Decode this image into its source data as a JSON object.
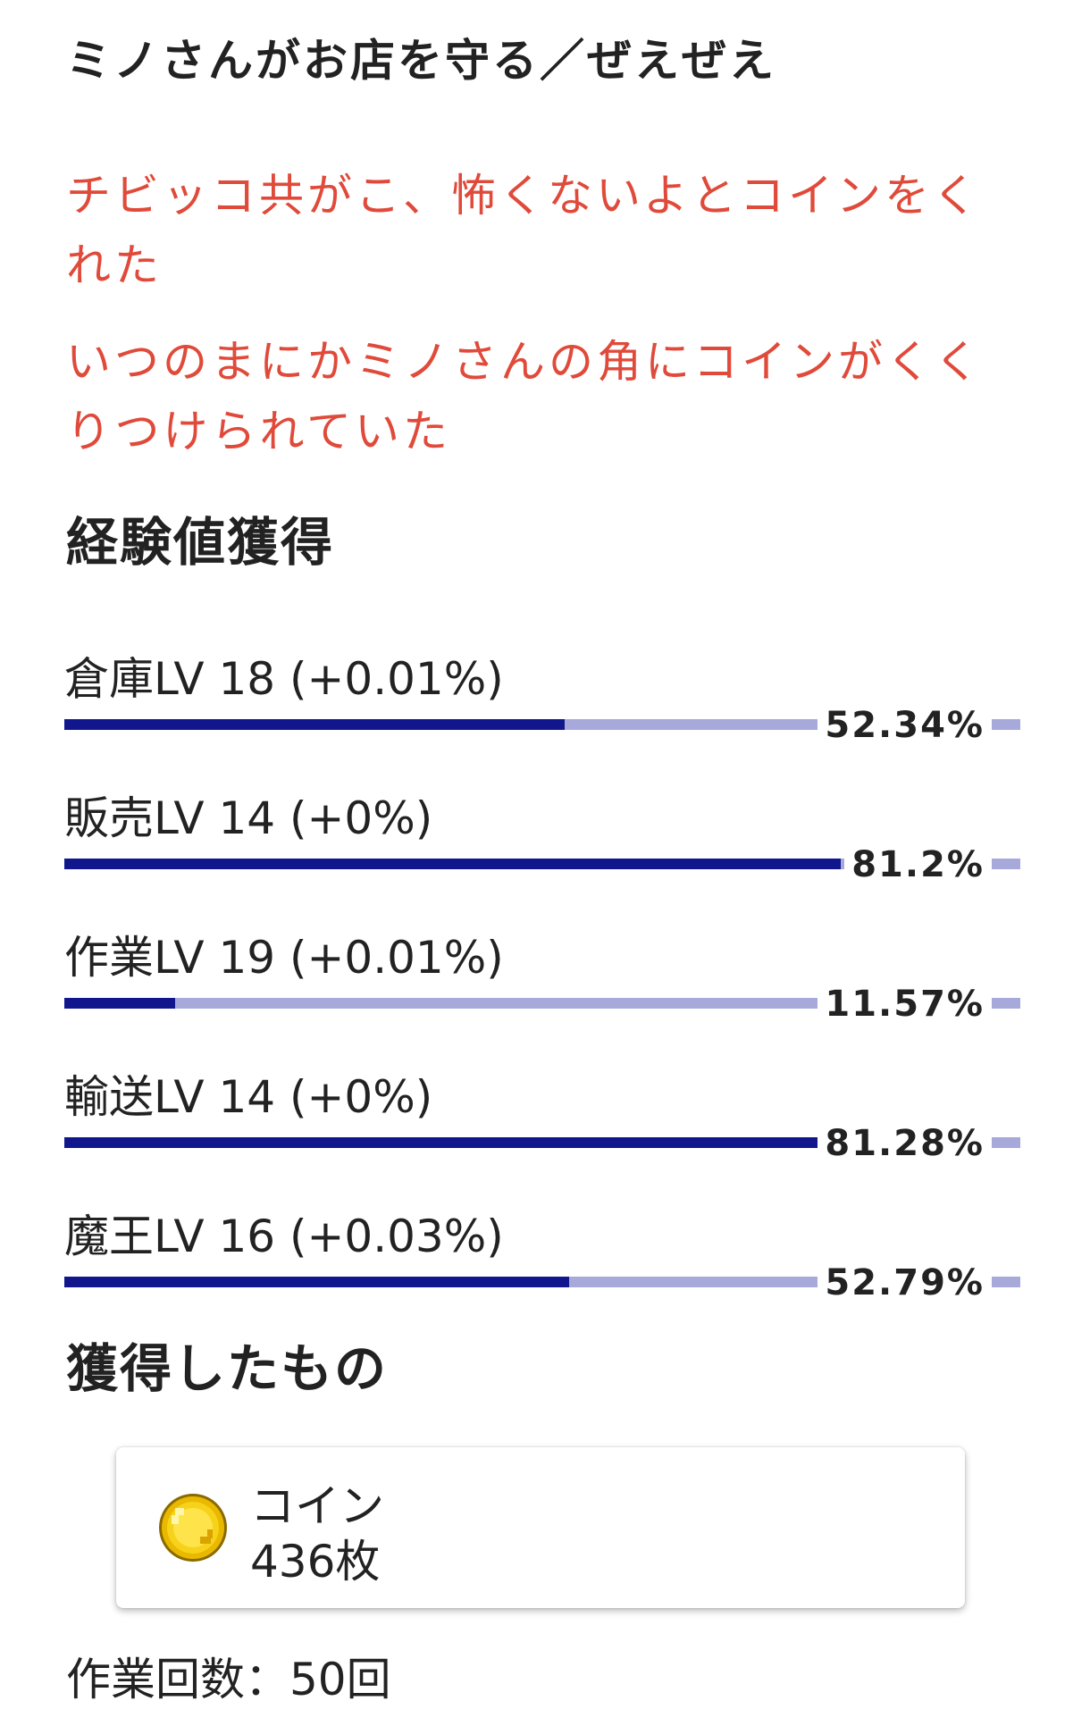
{
  "title": "ミノさんがお店を守る／ぜえぜえ",
  "story": [
    "チビッコ共がこ、怖くないよとコインをくれた",
    "いつのまにかミノさんの角にコインがくくりつけられていた"
  ],
  "exp_section": {
    "heading": "経験値獲得",
    "skills": [
      {
        "label": "倉庫LV 18 (+0.01%)",
        "value_text": "52.34%",
        "progress": 0.5234
      },
      {
        "label": "販売LV 14 (+0%)",
        "value_text": "81.2%",
        "progress": 0.812
      },
      {
        "label": "作業LV 19 (+0.01%)",
        "value_text": "11.57%",
        "progress": 0.1157
      },
      {
        "label": "輸送LV 14 (+0%)",
        "value_text": "81.28%",
        "progress": 0.8128
      },
      {
        "label": "魔王LV 16 (+0.03%)",
        "value_text": "52.79%",
        "progress": 0.5279
      }
    ]
  },
  "obtained_section": {
    "heading": "獲得したもの",
    "items": [
      {
        "name": "コイン",
        "count": "436枚",
        "icon": "gold-coin-icon"
      }
    ]
  },
  "work_count": "作業回数：50回",
  "colors": {
    "story_text": "#e04a3a",
    "bar_fill": "#11168c",
    "bar_track": "#a7a9db",
    "coin": "#f2c200"
  }
}
